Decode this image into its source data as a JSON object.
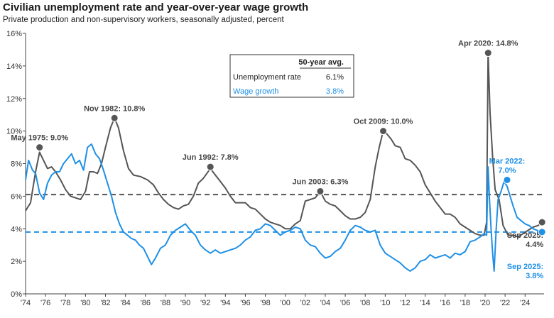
{
  "chart_data": {
    "type": "line",
    "title": "Civilian unemployment rate and year-over-year wage growth",
    "subtitle": "Private production and non-supervisory workers, seasonally adjusted, percent",
    "xlim": [
      1974,
      2025.9
    ],
    "ylim": [
      0,
      16
    ],
    "x_ticks": [
      1974,
      1976,
      1978,
      1980,
      1982,
      1984,
      1986,
      1988,
      1990,
      1992,
      1994,
      1996,
      1998,
      2000,
      2002,
      2004,
      2006,
      2008,
      2010,
      2012,
      2014,
      2016,
      2018,
      2020,
      2022,
      2024
    ],
    "x_tick_labels": [
      "'74",
      "'76",
      "'78",
      "'80",
      "'82",
      "'84",
      "'86",
      "'88",
      "'90",
      "'92",
      "'94",
      "'96",
      "'98",
      "'00",
      "'02",
      "'04",
      "'06",
      "'08",
      "'10",
      "'12",
      "'14",
      "'16",
      "'18",
      "'20",
      "'22",
      "'24"
    ],
    "y_ticks": [
      0,
      2,
      4,
      6,
      8,
      10,
      12,
      14,
      16
    ],
    "y_tick_labels": [
      "0%",
      "2%",
      "4%",
      "6%",
      "8%",
      "10%",
      "12%",
      "14%",
      "16%"
    ],
    "colors": {
      "unemployment": "#555555",
      "wage": "#1e90e6"
    },
    "series": [
      {
        "key": "unemployment",
        "x": [
          1974.0,
          1974.5,
          1975.0,
          1975.4,
          1975.8,
          1976.2,
          1976.6,
          1977.0,
          1977.5,
          1978.0,
          1978.5,
          1979.0,
          1979.5,
          1980.0,
          1980.4,
          1980.8,
          1981.2,
          1981.6,
          1982.0,
          1982.5,
          1982.9,
          1983.3,
          1983.8,
          1984.3,
          1984.8,
          1985.5,
          1986.2,
          1986.8,
          1987.3,
          1987.8,
          1988.3,
          1988.8,
          1989.3,
          1989.8,
          1990.3,
          1990.8,
          1991.3,
          1991.8,
          1992.5,
          1993.0,
          1993.5,
          1994.0,
          1994.5,
          1995.0,
          1995.5,
          1996.0,
          1996.5,
          1997.0,
          1997.5,
          1998.0,
          1998.5,
          1999.0,
          1999.5,
          2000.0,
          2000.5,
          2001.0,
          2001.5,
          2002.0,
          2002.5,
          2003.0,
          2003.5,
          2004.0,
          2004.5,
          2005.0,
          2005.5,
          2006.0,
          2006.5,
          2007.0,
          2007.5,
          2008.0,
          2008.5,
          2009.0,
          2009.4,
          2009.8,
          2010.2,
          2010.6,
          2011.0,
          2011.5,
          2012.0,
          2012.5,
          2013.0,
          2013.5,
          2014.0,
          2014.5,
          2015.0,
          2015.5,
          2016.0,
          2016.5,
          2017.0,
          2017.5,
          2018.0,
          2018.5,
          2019.0,
          2019.5,
          2019.9,
          2020.15,
          2020.3,
          2020.5,
          2020.75,
          2021.0,
          2021.4,
          2021.8,
          2022.3,
          2022.8,
          2023.3,
          2023.8,
          2024.3,
          2024.8,
          2025.3,
          2025.7
        ],
        "y": [
          5.1,
          5.6,
          7.5,
          8.7,
          8.2,
          7.7,
          7.8,
          7.5,
          7.0,
          6.4,
          6.0,
          5.9,
          5.8,
          6.3,
          7.5,
          7.5,
          7.4,
          8.0,
          9.0,
          10.2,
          10.8,
          10.2,
          8.8,
          7.7,
          7.3,
          7.2,
          7.0,
          6.7,
          6.2,
          5.8,
          5.5,
          5.3,
          5.2,
          5.4,
          5.5,
          6.0,
          6.8,
          7.1,
          7.7,
          7.3,
          6.9,
          6.5,
          6.0,
          5.6,
          5.6,
          5.6,
          5.3,
          5.2,
          4.9,
          4.6,
          4.4,
          4.3,
          4.2,
          4.0,
          4.0,
          4.3,
          4.5,
          5.7,
          5.8,
          5.9,
          6.3,
          5.7,
          5.5,
          5.4,
          5.1,
          4.8,
          4.6,
          4.6,
          4.7,
          5.0,
          5.8,
          7.8,
          9.0,
          10.0,
          9.8,
          9.5,
          9.1,
          9.0,
          8.3,
          8.2,
          7.9,
          7.5,
          6.7,
          6.2,
          5.7,
          5.3,
          4.9,
          4.9,
          4.7,
          4.3,
          4.1,
          3.9,
          3.7,
          3.6,
          3.6,
          4.4,
          14.8,
          11.1,
          8.4,
          6.4,
          5.8,
          4.2,
          3.6,
          3.6,
          3.5,
          3.7,
          3.9,
          4.1,
          4.2,
          4.4
        ]
      },
      {
        "key": "wage",
        "x": [
          1974.0,
          1974.3,
          1974.7,
          1975.0,
          1975.4,
          1975.8,
          1976.2,
          1976.6,
          1977.0,
          1977.4,
          1977.8,
          1978.2,
          1978.6,
          1979.0,
          1979.4,
          1979.8,
          1980.2,
          1980.6,
          1981.0,
          1981.4,
          1981.8,
          1982.2,
          1982.6,
          1983.0,
          1983.4,
          1983.8,
          1984.2,
          1984.6,
          1985.0,
          1985.4,
          1985.8,
          1986.2,
          1986.6,
          1987.0,
          1987.5,
          1988.0,
          1988.5,
          1989.0,
          1989.5,
          1990.0,
          1990.5,
          1991.0,
          1991.5,
          1992.0,
          1992.5,
          1993.0,
          1993.5,
          1994.0,
          1994.5,
          1995.0,
          1995.5,
          1996.0,
          1996.5,
          1997.0,
          1997.5,
          1998.0,
          1998.5,
          1999.0,
          1999.5,
          2000.0,
          2000.5,
          2001.0,
          2001.5,
          2002.0,
          2002.5,
          2003.0,
          2003.5,
          2004.0,
          2004.5,
          2005.0,
          2005.5,
          2006.0,
          2006.5,
          2007.0,
          2007.5,
          2008.0,
          2008.5,
          2009.0,
          2009.5,
          2010.0,
          2010.5,
          2011.0,
          2011.5,
          2012.0,
          2012.5,
          2013.0,
          2013.5,
          2014.0,
          2014.5,
          2015.0,
          2015.5,
          2016.0,
          2016.5,
          2017.0,
          2017.5,
          2018.0,
          2018.5,
          2019.0,
          2019.5,
          2019.9,
          2020.15,
          2020.3,
          2020.45,
          2020.6,
          2020.75,
          2020.9,
          2021.1,
          2021.3,
          2021.6,
          2021.9,
          2022.2,
          2022.5,
          2022.8,
          2023.2,
          2023.6,
          2024.0,
          2024.4,
          2024.8,
          2025.2,
          2025.7
        ],
        "y": [
          7.0,
          8.2,
          7.6,
          7.4,
          6.2,
          5.8,
          6.8,
          7.3,
          7.5,
          7.5,
          8.0,
          8.3,
          8.6,
          8.0,
          8.2,
          7.6,
          9.0,
          9.2,
          8.6,
          8.3,
          7.6,
          6.8,
          6.0,
          5.0,
          4.3,
          3.8,
          3.6,
          3.4,
          3.3,
          3.0,
          2.8,
          2.3,
          1.8,
          2.2,
          2.8,
          3.0,
          3.6,
          3.9,
          4.1,
          4.3,
          3.9,
          3.6,
          3.0,
          2.7,
          2.5,
          2.7,
          2.5,
          2.6,
          2.7,
          2.8,
          3.0,
          3.3,
          3.5,
          3.9,
          4.0,
          4.3,
          4.2,
          3.9,
          3.6,
          3.8,
          3.9,
          4.1,
          4.0,
          3.3,
          3.0,
          2.9,
          2.5,
          2.2,
          2.3,
          2.6,
          2.8,
          3.3,
          3.9,
          4.2,
          4.1,
          3.9,
          3.8,
          3.9,
          3.0,
          2.5,
          2.3,
          2.1,
          1.9,
          1.6,
          1.4,
          1.6,
          2.0,
          2.1,
          2.4,
          2.2,
          2.3,
          2.4,
          2.2,
          2.5,
          2.4,
          2.6,
          3.2,
          3.3,
          3.5,
          3.7,
          3.6,
          7.8,
          5.7,
          3.9,
          2.5,
          1.4,
          3.9,
          5.8,
          6.3,
          6.9,
          6.6,
          6.0,
          5.4,
          4.7,
          4.5,
          4.3,
          4.2,
          4.0,
          3.9,
          3.8
        ]
      }
    ],
    "averages": {
      "unemployment": 6.1,
      "wage": 3.8
    },
    "avg_table": {
      "header": "50-year avg.",
      "rows": [
        {
          "label": "Unemployment rate",
          "value": "6.1%",
          "key": "unemployment"
        },
        {
          "label": "Wage growth",
          "value": "3.8%",
          "key": "wage"
        }
      ]
    },
    "annotations": [
      {
        "text": "May 1975: 9.0%",
        "x": 1975.4,
        "y": 9.0,
        "series": "unemployment",
        "anchor": "above"
      },
      {
        "text": "Nov 1982: 10.8%",
        "x": 1982.9,
        "y": 10.8,
        "series": "unemployment",
        "anchor": "above"
      },
      {
        "text": "Jun 1992: 7.8%",
        "x": 1992.5,
        "y": 7.8,
        "series": "unemployment",
        "anchor": "above"
      },
      {
        "text": "Jun 2003: 6.3%",
        "x": 2003.5,
        "y": 6.3,
        "series": "unemployment",
        "anchor": "above"
      },
      {
        "text": "Oct 2009: 10.0%",
        "x": 2009.8,
        "y": 10.0,
        "series": "unemployment",
        "anchor": "above"
      },
      {
        "text": "Apr 2020: 14.8%",
        "x": 2020.3,
        "y": 14.8,
        "series": "unemployment",
        "anchor": "above"
      },
      {
        "text": "Mar 2022:\n7.0%",
        "x": 2022.2,
        "y": 7.0,
        "series": "wage",
        "anchor": "above"
      },
      {
        "text": "Sep 2025:\n4.4%",
        "x": 2025.7,
        "y": 4.4,
        "series": "unemployment",
        "anchor": "below"
      },
      {
        "text": "Sep 2025:\n3.8%",
        "x": 2025.7,
        "y": 3.8,
        "series": "wage",
        "anchor": "below"
      }
    ],
    "grid": false,
    "legend": "top-center table"
  }
}
